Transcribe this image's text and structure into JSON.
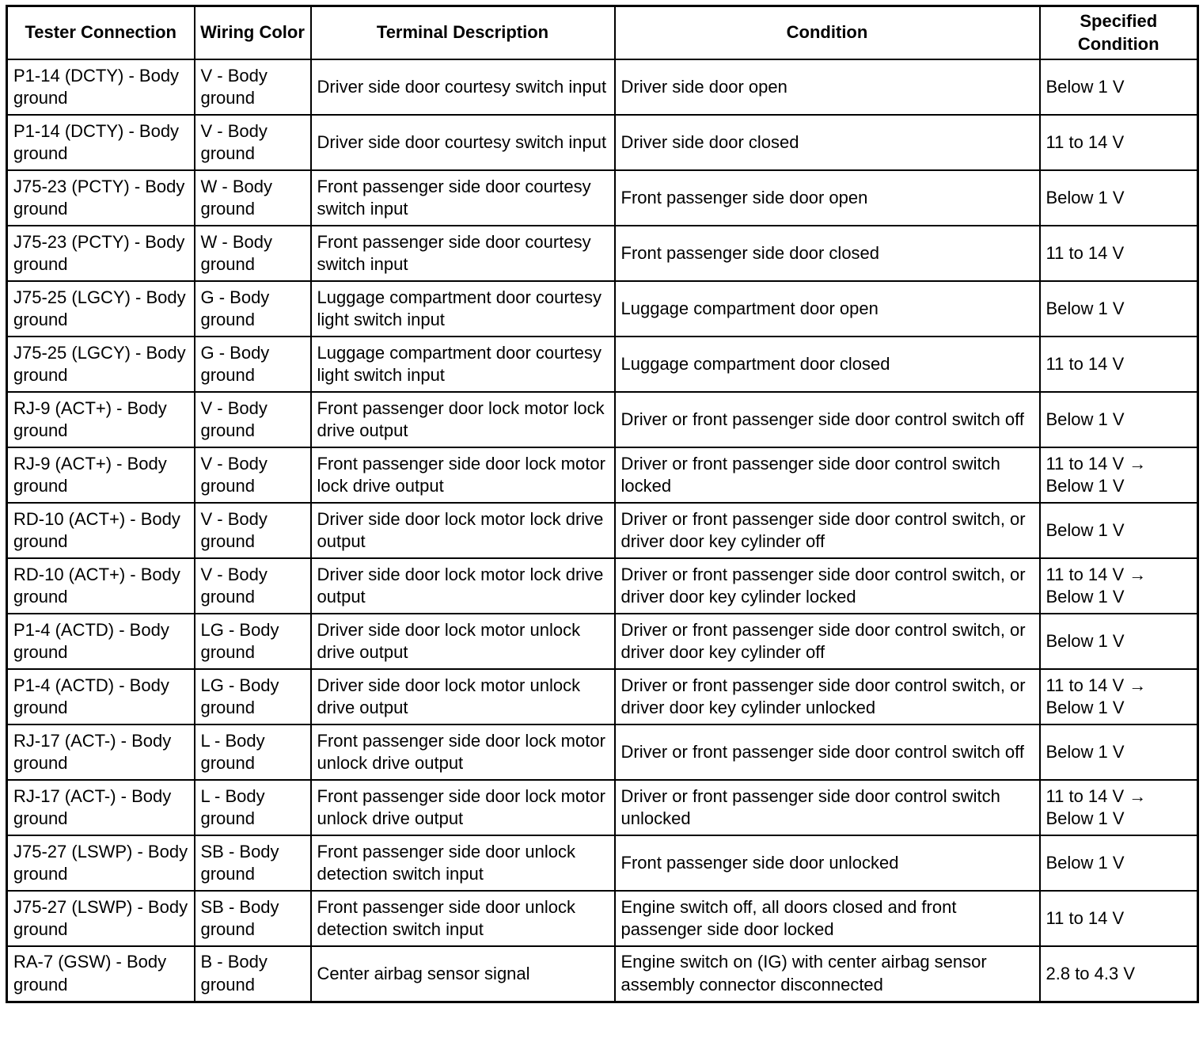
{
  "table": {
    "columns": [
      "Tester Connection",
      "Wiring Color",
      "Terminal Description",
      "Condition",
      "Specified Condition"
    ],
    "rows": [
      [
        "P1-14 (DCTY) - Body ground",
        "V - Body ground",
        "Driver side door courtesy switch input",
        "Driver side door open",
        "Below 1 V"
      ],
      [
        "P1-14 (DCTY) - Body ground",
        "V - Body ground",
        "Driver side door courtesy switch input",
        "Driver side door closed",
        "11 to 14 V"
      ],
      [
        "J75-23 (PCTY) - Body ground",
        "W - Body ground",
        "Front passenger side door courtesy switch input",
        "Front passenger side door open",
        "Below 1 V"
      ],
      [
        "J75-23 (PCTY) - Body ground",
        "W - Body ground",
        "Front passenger side door courtesy switch input",
        "Front passenger side door closed",
        "11 to 14 V"
      ],
      [
        "J75-25 (LGCY) - Body ground",
        "G - Body ground",
        "Luggage compartment door courtesy light switch input",
        "Luggage compartment door open",
        "Below 1 V"
      ],
      [
        "J75-25 (LGCY) - Body ground",
        "G - Body ground",
        "Luggage compartment door courtesy light switch input",
        "Luggage compartment door closed",
        "11 to 14 V"
      ],
      [
        "RJ-9 (ACT+) - Body ground",
        "V - Body ground",
        "Front passenger door lock motor lock drive output",
        "Driver or front passenger side door control switch off",
        "Below 1 V"
      ],
      [
        "RJ-9 (ACT+) - Body ground",
        "V - Body ground",
        "Front passenger side door lock motor lock drive output",
        "Driver or front passenger side door control switch locked",
        "11 to 14 V → Below 1 V"
      ],
      [
        "RD-10 (ACT+) - Body ground",
        "V - Body ground",
        "Driver side door lock motor lock drive output",
        "Driver or front passenger side door control switch, or driver door key cylinder off",
        "Below 1 V"
      ],
      [
        "RD-10 (ACT+) - Body ground",
        "V - Body ground",
        "Driver side door lock motor lock drive output",
        "Driver or front passenger side door control switch, or driver door key cylinder locked",
        "11 to 14 V → Below 1 V"
      ],
      [
        "P1-4 (ACTD) - Body ground",
        "LG - Body ground",
        "Driver side door lock motor unlock drive output",
        "Driver or front passenger side door control switch, or driver door key cylinder off",
        "Below 1 V"
      ],
      [
        "P1-4 (ACTD) - Body ground",
        "LG - Body ground",
        "Driver side door lock motor unlock drive output",
        "Driver or front passenger side door control switch, or driver door key cylinder unlocked",
        "11 to 14 V → Below 1 V"
      ],
      [
        "RJ-17 (ACT-) - Body ground",
        "L - Body ground",
        "Front passenger side door lock motor unlock drive output",
        "Driver or front passenger side door control switch off",
        "Below 1 V"
      ],
      [
        "RJ-17 (ACT-) - Body ground",
        "L - Body ground",
        "Front passenger side door lock motor unlock drive output",
        "Driver or front passenger side door control switch unlocked",
        "11 to 14 V → Below 1 V"
      ],
      [
        "J75-27 (LSWP) - Body ground",
        "SB - Body ground",
        "Front passenger side door unlock detection switch input",
        "Front passenger side door unlocked",
        "Below 1 V"
      ],
      [
        "J75-27 (LSWP) - Body ground",
        "SB - Body ground",
        "Front passenger side door unlock detection switch input",
        "Engine switch off, all doors closed and front passenger side door locked",
        "11 to 14 V"
      ],
      [
        "RA-7 (GSW) - Body ground",
        "B - Body ground",
        "Center airbag sensor signal",
        "Engine switch on (IG) with center airbag sensor assembly connector disconnected",
        "2.8 to 4.3 V"
      ]
    ]
  }
}
